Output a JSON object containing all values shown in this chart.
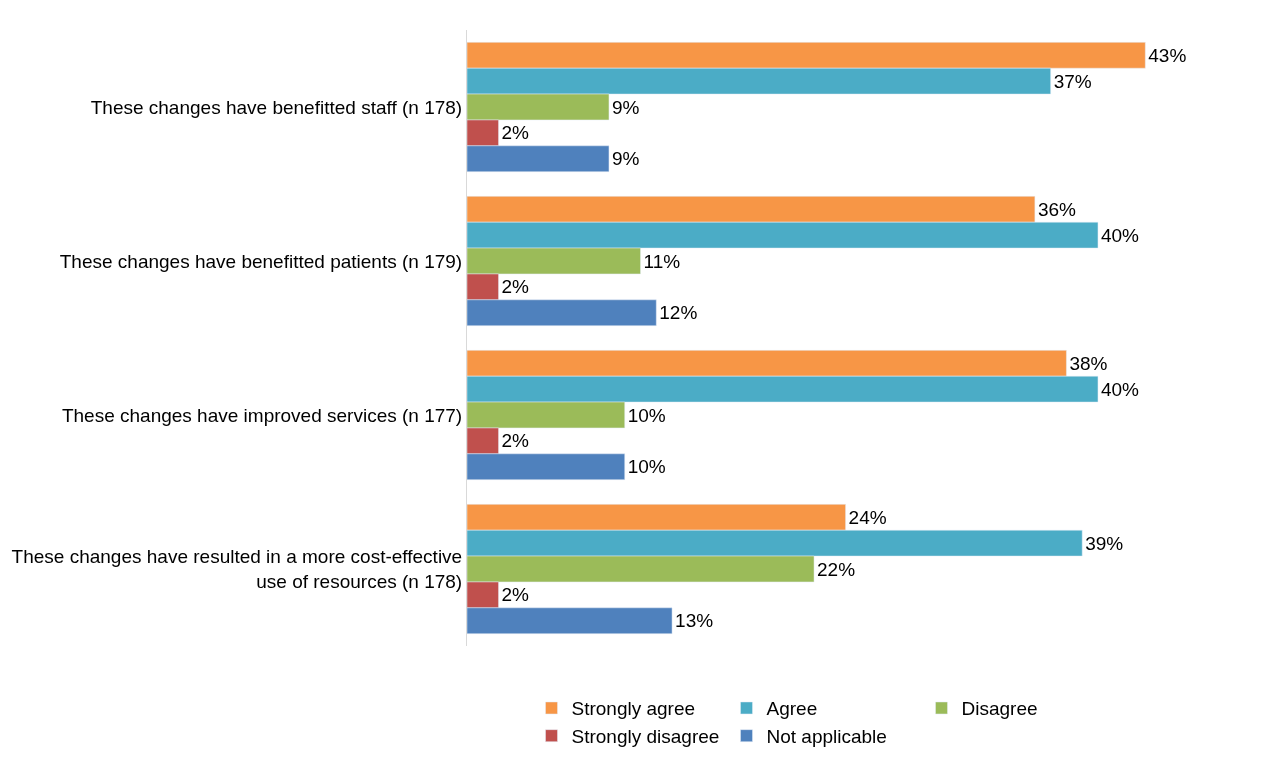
{
  "chart_data": {
    "type": "bar",
    "orientation": "horizontal",
    "legend": "bottom",
    "tick_labels": "y",
    "categories": [
      "These changes have benefitted staff (n 178)",
      "These changes have benefitted patients (n 179)",
      "These changes have improved services (n 177)",
      "These changes have resulted in a more cost-effective use of resources (n 178)"
    ],
    "series": [
      {
        "name": "Strongly agree",
        "color": "#f79646",
        "values": [
          43,
          36,
          38,
          24
        ],
        "value_labels": [
          "43%",
          "36%",
          "38%",
          "24%"
        ]
      },
      {
        "name": "Agree",
        "color": "#4bacc6",
        "values": [
          37,
          40,
          40,
          39
        ],
        "value_labels": [
          "37%",
          "40%",
          "40%",
          "39%"
        ]
      },
      {
        "name": "Disagree",
        "color": "#9bbb59",
        "values": [
          9,
          11,
          10,
          22
        ],
        "value_labels": [
          "9%",
          "11%",
          "10%",
          "22%"
        ]
      },
      {
        "name": "Strongly disagree",
        "color": "#c0504d",
        "values": [
          2,
          2,
          2,
          2
        ],
        "value_labels": [
          "2%",
          "2%",
          "2%",
          "2%"
        ]
      },
      {
        "name": "Not applicable",
        "color": "#4f81bd",
        "values": [
          9,
          12,
          10,
          13
        ],
        "value_labels": [
          "9%",
          "12%",
          "10%",
          "13%"
        ]
      }
    ]
  }
}
